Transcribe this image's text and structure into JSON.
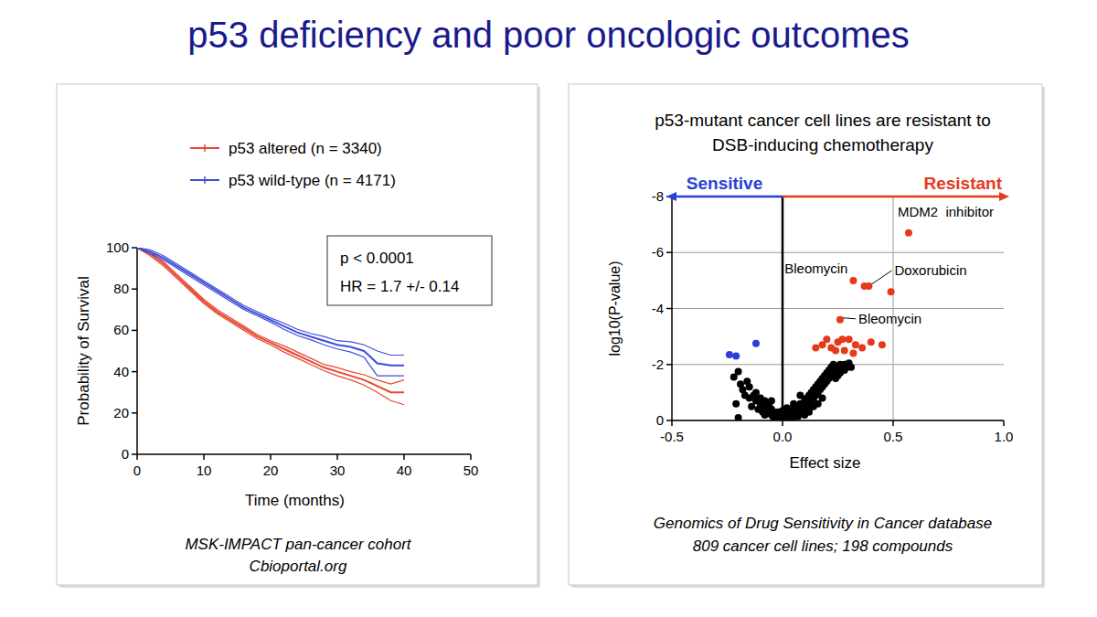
{
  "title": "p53 deficiency and poor oncologic outcomes",
  "chart_data": [
    {
      "type": "line",
      "xlabel": "Time (months)",
      "ylabel": "Probability of Survival",
      "xlim": [
        0,
        50
      ],
      "xticks": [
        0,
        10,
        20,
        30,
        40,
        50
      ],
      "ylim": [
        0,
        100
      ],
      "yticks": [
        0,
        20,
        40,
        60,
        80,
        100
      ],
      "grid": false,
      "legend": "top",
      "line_style": "solid",
      "annotations": [
        "p < 0.0001",
        "HR = 1.7 +/- 0.14"
      ],
      "caption": [
        "MSK-IMPACT pan-cancer cohort",
        "Cbioportal.org"
      ],
      "x": [
        0,
        2,
        4,
        6,
        8,
        10,
        12,
        14,
        16,
        18,
        20,
        22,
        24,
        26,
        28,
        30,
        32,
        34,
        36,
        38,
        40
      ],
      "series": [
        {
          "name": "p53 altered (n = 3340)",
          "color": "#e8452f",
          "values": [
            100,
            97,
            92,
            86,
            80,
            74,
            69,
            65,
            61,
            57,
            54,
            51,
            48,
            45,
            42,
            40,
            38,
            36,
            33,
            30,
            30
          ],
          "lower": [
            100,
            96,
            91,
            85,
            79,
            73,
            68,
            64,
            60,
            56,
            53,
            49.5,
            46.5,
            43.5,
            40.5,
            38,
            36,
            33.5,
            30,
            26,
            24
          ],
          "upper": [
            100,
            98,
            93,
            87,
            81,
            75,
            70,
            66,
            62,
            58,
            55,
            52.5,
            49.5,
            46.5,
            43.5,
            42,
            40,
            38.5,
            36,
            34,
            36
          ]
        },
        {
          "name": "p53 wild-type (n = 4171)",
          "color": "#3d4fd8",
          "values": [
            100,
            98,
            95,
            91,
            87,
            83,
            79,
            75,
            71,
            68,
            65,
            62,
            59,
            57,
            55,
            53,
            52,
            50,
            44,
            43,
            43
          ],
          "lower": [
            100,
            97,
            94,
            90,
            86,
            82,
            78,
            74,
            70,
            67,
            64,
            60.5,
            57.5,
            55.5,
            53,
            51,
            49.5,
            47,
            38,
            38,
            38
          ],
          "upper": [
            100,
            99,
            96,
            92,
            88,
            84,
            80,
            76,
            72,
            69,
            66,
            63.5,
            60.5,
            58.5,
            57,
            55,
            54.5,
            53,
            50,
            48,
            48
          ]
        }
      ]
    },
    {
      "type": "scatter",
      "title": "p53-mutant cancer cell lines are resistant to DSB-inducing chemotherapy",
      "xlabel": "Effect size",
      "ylabel": "log10(P-value)",
      "xlim": [
        -0.5,
        1.0
      ],
      "xticks": [
        -0.5,
        {
          "value": 0,
          "label": "0.0"
        },
        0.5,
        {
          "value": 1,
          "label": "1.0"
        }
      ],
      "ylim": [
        0,
        -8
      ],
      "yticks": [
        0,
        -2,
        -4,
        -6,
        -8
      ],
      "grid": true,
      "marker": "circle",
      "arrows": [
        {
          "text": "Sensitive",
          "color": "#2a3fd6"
        },
        {
          "text": "Resistant",
          "color": "#e8381c"
        }
      ],
      "annotations": [
        {
          "text": "MDM2  inhibitor",
          "x": 0.57,
          "y": -6.7
        },
        {
          "text": "Bleomycin",
          "x": 0.32,
          "y": -5.0
        },
        {
          "text": "Doxorubicin",
          "x": 0.39,
          "y": -4.8
        },
        {
          "text": "Bleomycin",
          "x": 0.26,
          "y": -3.6
        }
      ],
      "caption": [
        "Genomics of Drug Sensitivity in Cancer database",
        "809 cancer cell lines; 198 compounds"
      ],
      "series": [
        {
          "color": "#000000",
          "x": [
            -0.22,
            -0.2,
            -0.19,
            -0.21,
            -0.2,
            -0.18,
            -0.17,
            -0.16,
            -0.15,
            -0.15,
            -0.14,
            -0.13,
            -0.12,
            -0.12,
            -0.11,
            -0.1,
            -0.1,
            -0.09,
            -0.09,
            -0.08,
            -0.08,
            -0.07,
            -0.07,
            -0.06,
            -0.06,
            -0.05,
            -0.05,
            -0.04,
            -0.04,
            -0.03,
            -0.03,
            -0.02,
            -0.02,
            -0.01,
            -0.01,
            0,
            0.01,
            0.01,
            0.02,
            0.02,
            0.03,
            0.03,
            0.04,
            0.04,
            0.05,
            0.05,
            0.06,
            0.06,
            0.07,
            0.07,
            0.08,
            0.08,
            0.09,
            0.09,
            0.1,
            0.1,
            0.11,
            0.11,
            0.12,
            0.12,
            0.13,
            0.13,
            0.14,
            0.14,
            0.15,
            0.15,
            0.16,
            0.16,
            0.17,
            0.17,
            0.18,
            0.18,
            0.19,
            0.19,
            0.2,
            0.2,
            0.21,
            0.21,
            0.22,
            0.22,
            0.23,
            0.23,
            0.24,
            0.24,
            0.25,
            0.25,
            0.26,
            0.26,
            0.27,
            0.28,
            0.28,
            0.29,
            0.3,
            0.31,
            0.12,
            0.14,
            0.16,
            0.18,
            0.05,
            0.08,
            -0.05,
            0.02,
            0,
            0.1
          ],
          "values": [
            -1.55,
            -1.75,
            -1.3,
            -0.6,
            -0.1,
            -1.1,
            -0.9,
            -1.4,
            -0.8,
            -1.2,
            -0.5,
            -0.9,
            -0.7,
            -1.0,
            -0.4,
            -0.6,
            -0.8,
            -0.3,
            -0.5,
            -0.7,
            -0.2,
            -0.4,
            -0.6,
            -0.3,
            -0.5,
            -0.2,
            -0.4,
            -0.1,
            -0.3,
            -0.2,
            -0.05,
            -0.1,
            -0.3,
            -0.05,
            -0.2,
            -0.1,
            -0.05,
            -0.15,
            -0.2,
            -0.05,
            -0.1,
            -0.3,
            -0.2,
            -0.4,
            -0.1,
            -0.3,
            -0.25,
            -0.5,
            -0.35,
            -0.15,
            -0.4,
            -0.6,
            -0.3,
            -0.55,
            -0.5,
            -0.7,
            -0.4,
            -0.8,
            -0.6,
            -0.9,
            -0.7,
            -1.0,
            -0.8,
            -1.1,
            -0.9,
            -1.2,
            -1.0,
            -1.3,
            -1.1,
            -1.4,
            -1.2,
            -1.5,
            -1.3,
            -1.6,
            -1.4,
            -1.7,
            -1.5,
            -1.8,
            -1.6,
            -1.9,
            -1.7,
            -2.0,
            -1.8,
            -1.5,
            -1.9,
            -1.6,
            -2.0,
            -1.7,
            -1.9,
            -2.0,
            -1.8,
            -1.9,
            -2.05,
            -1.9,
            -0.3,
            -0.5,
            -0.6,
            -0.8,
            -0.6,
            -0.9,
            -0.7,
            -0.45,
            -0.35,
            -0.2
          ]
        },
        {
          "color": "#e8381c",
          "x": [
            0.57,
            0.32,
            0.37,
            0.39,
            0.49,
            0.26,
            0.15,
            0.18,
            0.2,
            0.22,
            0.25,
            0.27,
            0.3,
            0.33,
            0.36,
            0.4,
            0.45,
            0.24,
            0.28,
            0.32
          ],
          "values": [
            -6.7,
            -5.0,
            -4.8,
            -4.8,
            -4.6,
            -3.6,
            -2.6,
            -2.7,
            -2.9,
            -2.6,
            -2.8,
            -2.9,
            -2.9,
            -2.7,
            -2.6,
            -2.8,
            -2.7,
            -2.5,
            -2.5,
            -2.4
          ]
        },
        {
          "color": "#2a3fd6",
          "x": [
            -0.24,
            -0.21,
            -0.12
          ],
          "values": [
            -2.35,
            -2.3,
            -2.75
          ]
        }
      ]
    }
  ]
}
